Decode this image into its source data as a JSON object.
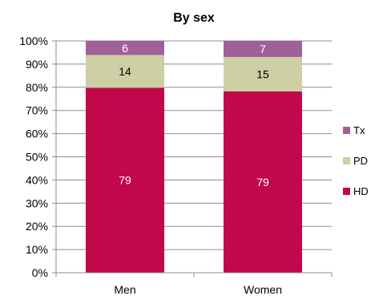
{
  "chart_data": {
    "type": "bar",
    "stacked": true,
    "percent_stacked": true,
    "title": "By sex",
    "categories": [
      "Men",
      "Women"
    ],
    "series": [
      {
        "name": "HD",
        "values": [
          79,
          79
        ],
        "color": "#C0084A",
        "label_color": "#ffffff"
      },
      {
        "name": "PD",
        "values": [
          14,
          15
        ],
        "color": "#CDCFA4",
        "label_color": "#000000"
      },
      {
        "name": "Tx",
        "values": [
          6,
          7
        ],
        "color": "#A0609A",
        "label_color": "#ffffff"
      }
    ],
    "ylim": [
      0,
      100
    ],
    "yticks": [
      "0%",
      "10%",
      "20%",
      "30%",
      "40%",
      "50%",
      "60%",
      "70%",
      "80%",
      "90%",
      "100%"
    ],
    "grid": true,
    "legend": {
      "position": "right",
      "order": [
        "Tx",
        "PD",
        "HD"
      ]
    }
  }
}
